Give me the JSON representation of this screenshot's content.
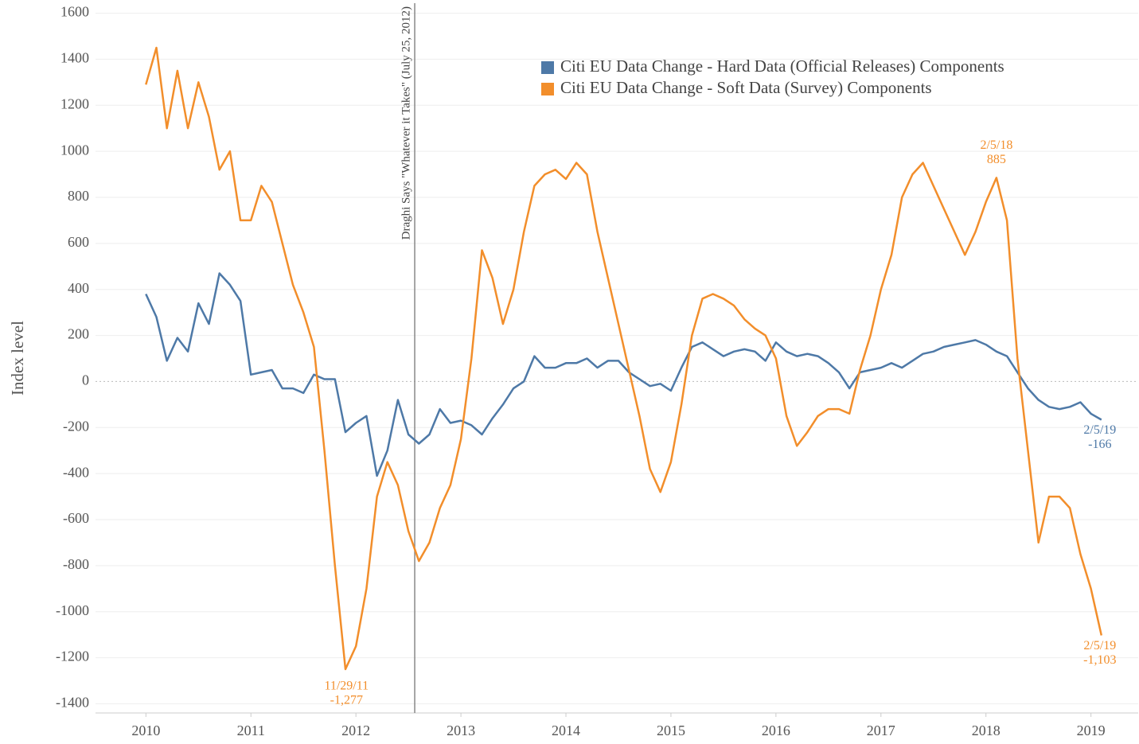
{
  "chart_data": {
    "type": "line",
    "y_label": "Index level",
    "legend": "top-right",
    "grid": true,
    "xlim": [
      2009.52,
      2019.45
    ],
    "xticks": [
      2010,
      2011,
      2012,
      2013,
      2014,
      2015,
      2016,
      2017,
      2018,
      2019
    ],
    "ylim": [
      -1440,
      1640
    ],
    "yticks": [
      1600,
      1400,
      1200,
      1000,
      800,
      600,
      400,
      200,
      0,
      -200,
      -400,
      -600,
      -800,
      -1000,
      -1200,
      -1400
    ],
    "x": [
      2010.0,
      2010.1,
      2010.2,
      2010.3,
      2010.4,
      2010.5,
      2010.6,
      2010.7,
      2010.8,
      2010.9,
      2011.0,
      2011.1,
      2011.2,
      2011.3,
      2011.4,
      2011.5,
      2011.6,
      2011.7,
      2011.8,
      2011.9,
      2012.0,
      2012.1,
      2012.2,
      2012.3,
      2012.4,
      2012.5,
      2012.6,
      2012.7,
      2012.8,
      2012.9,
      2013.0,
      2013.1,
      2013.2,
      2013.3,
      2013.4,
      2013.5,
      2013.6,
      2013.7,
      2013.8,
      2013.9,
      2014.0,
      2014.1,
      2014.2,
      2014.3,
      2014.4,
      2014.5,
      2014.6,
      2014.7,
      2014.8,
      2014.9,
      2015.0,
      2015.1,
      2015.2,
      2015.3,
      2015.4,
      2015.5,
      2015.6,
      2015.7,
      2015.8,
      2015.9,
      2016.0,
      2016.1,
      2016.2,
      2016.3,
      2016.4,
      2016.5,
      2016.6,
      2016.7,
      2016.8,
      2016.9,
      2017.0,
      2017.1,
      2017.2,
      2017.3,
      2017.4,
      2017.5,
      2017.6,
      2017.7,
      2017.8,
      2017.9,
      2018.0,
      2018.1,
      2018.2,
      2018.3,
      2018.4,
      2018.5,
      2018.6,
      2018.7,
      2018.8,
      2018.9,
      2019.0,
      2019.1
    ],
    "series": [
      {
        "name": "Citi EU Data Change - Hard Data (Official Releases) Components",
        "color": "#4e79a7",
        "values": [
          380,
          280,
          90,
          190,
          130,
          340,
          250,
          470,
          420,
          350,
          30,
          40,
          50,
          -30,
          -30,
          -50,
          30,
          10,
          10,
          -220,
          -180,
          -150,
          -410,
          -300,
          -80,
          -230,
          -270,
          -230,
          -120,
          -180,
          -170,
          -190,
          -230,
          -160,
          -100,
          -30,
          0,
          110,
          60,
          60,
          80,
          80,
          100,
          60,
          90,
          90,
          40,
          10,
          -20,
          -10,
          -40,
          60,
          150,
          170,
          140,
          110,
          130,
          140,
          130,
          90,
          170,
          130,
          110,
          120,
          110,
          80,
          40,
          -30,
          40,
          50,
          60,
          80,
          60,
          90,
          120,
          130,
          150,
          160,
          170,
          180,
          160,
          130,
          110,
          40,
          -30,
          -80,
          -110,
          -120,
          -110,
          -90,
          -140,
          -166
        ]
      },
      {
        "name": "Citi EU Data Change - Soft Data (Survey) Components",
        "color": "#f28e2b",
        "values": [
          1290,
          1450,
          1100,
          1350,
          1100,
          1300,
          1150,
          920,
          1000,
          700,
          700,
          850,
          780,
          600,
          420,
          300,
          150,
          -300,
          -800,
          -1250,
          -1150,
          -900,
          -500,
          -350,
          -450,
          -650,
          -780,
          -700,
          -550,
          -450,
          -250,
          100,
          570,
          450,
          250,
          400,
          650,
          850,
          900,
          920,
          880,
          950,
          900,
          650,
          450,
          250,
          50,
          -150,
          -380,
          -480,
          -350,
          -100,
          200,
          360,
          380,
          360,
          330,
          270,
          230,
          200,
          100,
          -150,
          -280,
          -220,
          -150,
          -120,
          -120,
          -140,
          50,
          200,
          400,
          550,
          800,
          900,
          950,
          850,
          750,
          650,
          550,
          650,
          780,
          885,
          700,
          100,
          -300,
          -700,
          -500,
          -500,
          -550,
          -750,
          -900,
          -1103
        ]
      }
    ],
    "vline": {
      "x": 2012.56,
      "label": "Draghi Says \"Whatever it Takes\" (July 25, 2012)"
    },
    "annotations": [
      {
        "x": 2011.91,
        "y": -1277,
        "date": "11/29/11",
        "label": "-1,277",
        "color": "#f28e2b"
      },
      {
        "x": 2018.1,
        "y": 885,
        "date": "2/5/18",
        "label": "885",
        "color": "#f28e2b"
      },
      {
        "x": 2019.1,
        "y": -166,
        "date": "2/5/19",
        "label": "-166",
        "color": "#4e79a7"
      },
      {
        "x": 2019.1,
        "y": -1103,
        "date": "2/5/19",
        "label": "-1,103",
        "color": "#f28e2b"
      }
    ]
  }
}
